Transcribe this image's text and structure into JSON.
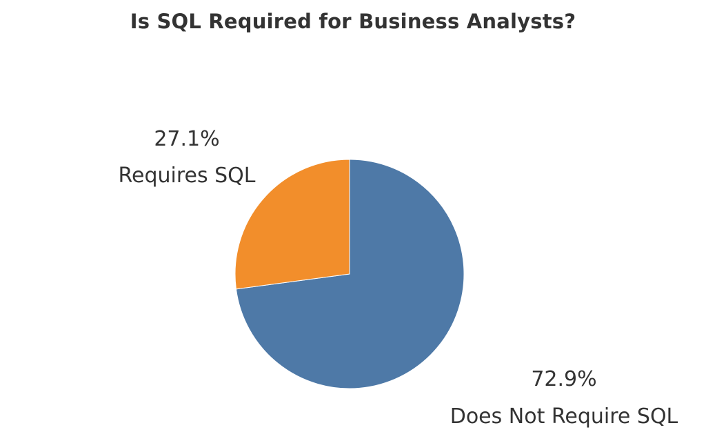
{
  "chart_data": {
    "type": "pie",
    "title": "Is SQL Required for Business Analysts?",
    "slices": [
      {
        "label": "Does Not Require SQL",
        "value": 72.9,
        "percent_label": "72.9%",
        "color": "#4e79a7"
      },
      {
        "label": "Requires SQL",
        "value": 27.1,
        "percent_label": "27.1%",
        "color": "#f28e2b"
      }
    ],
    "start_angle_deg": 0,
    "direction": "clockwise"
  }
}
